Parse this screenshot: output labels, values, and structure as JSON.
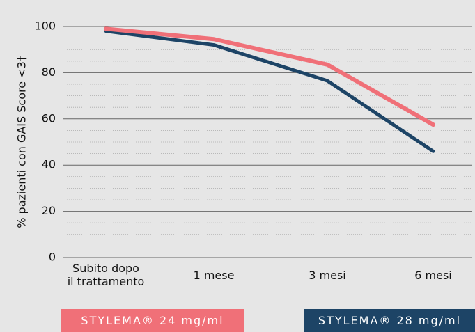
{
  "chart_data": {
    "type": "line",
    "y_label": "% pazienti con GAIS Score <3†",
    "categories": [
      "Subito dopo\nil trattamento",
      "1 mese",
      "3 mesi",
      "6 mesi"
    ],
    "series": [
      {
        "name": "STYLEMA® 24 mg/ml",
        "color": "#f07078",
        "values": [
          99,
          94.5,
          83.5,
          57.5
        ]
      },
      {
        "name": "STYLEMA® 28 mg/ml",
        "color": "#1d4466",
        "values": [
          98,
          92,
          76.5,
          46
        ]
      }
    ],
    "ylim": [
      0,
      100
    ],
    "yticks": [
      0,
      20,
      40,
      60,
      80,
      100
    ],
    "yminorticks": [
      5,
      10,
      15,
      25,
      30,
      35,
      45,
      50,
      55,
      65,
      70,
      75,
      85,
      90,
      95
    ],
    "grid": true
  }
}
